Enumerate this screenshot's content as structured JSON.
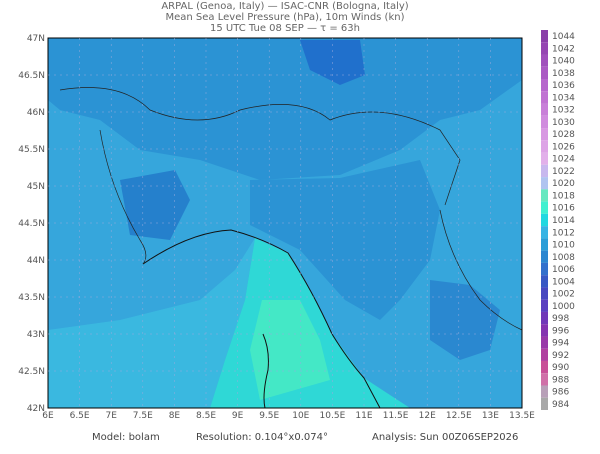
{
  "header": {
    "line1": "ARPAL (Genoa, Italy)  —  ISAC-CNR (Bologna, Italy)",
    "line2": "Mean Sea Level Pressure (hPa), 10m Winds (kn)",
    "line3": "15 UTC Tue 08 SEP  —  τ = 63h"
  },
  "map": {
    "lat_labels": [
      "47N",
      "46.5N",
      "46N",
      "45.5N",
      "45N",
      "44.5N",
      "44N",
      "43.5N",
      "43N",
      "42.5N",
      "42N"
    ],
    "lon_labels": [
      "6E",
      "6.5E",
      "7E",
      "7.5E",
      "8E",
      "8.5E",
      "9E",
      "9.5E",
      "10E",
      "10.5E",
      "11E",
      "11.5E",
      "12E",
      "12.5E",
      "13E",
      "13.5E"
    ]
  },
  "colorbar": {
    "levels": [
      1044,
      1042,
      1040,
      1038,
      1036,
      1034,
      1032,
      1030,
      1028,
      1026,
      1024,
      1022,
      1020,
      1018,
      1016,
      1014,
      1012,
      1010,
      1008,
      1006,
      1004,
      1002,
      1000,
      998,
      996,
      994,
      992,
      990,
      988,
      986,
      984
    ],
    "colors": [
      "#8a3fa8",
      "#9546b2",
      "#a050bc",
      "#ab5ac4",
      "#b666cc",
      "#c072d2",
      "#c87fd8",
      "#d08cde",
      "#d898e2",
      "#dda4e6",
      "#e2b0ea",
      "#c8b8ee",
      "#b0c4f0",
      "#66e8c0",
      "#40f0d0",
      "#22d8e0",
      "#38b4e4",
      "#2a9ed8",
      "#2c86d0",
      "#3270cc",
      "#3858c4",
      "#4848c0",
      "#5a40c0",
      "#7038b8",
      "#8434b0",
      "#9838a8",
      "#b040a0",
      "#c85098",
      "#d070a8",
      "#b8a0b8",
      "#a8a8a8"
    ]
  },
  "footer": {
    "model": "Model: bolam",
    "resolution": "Resolution: 0.104°x0.074°",
    "analysis": "Analysis: Sun 00Z06SEP2026"
  }
}
